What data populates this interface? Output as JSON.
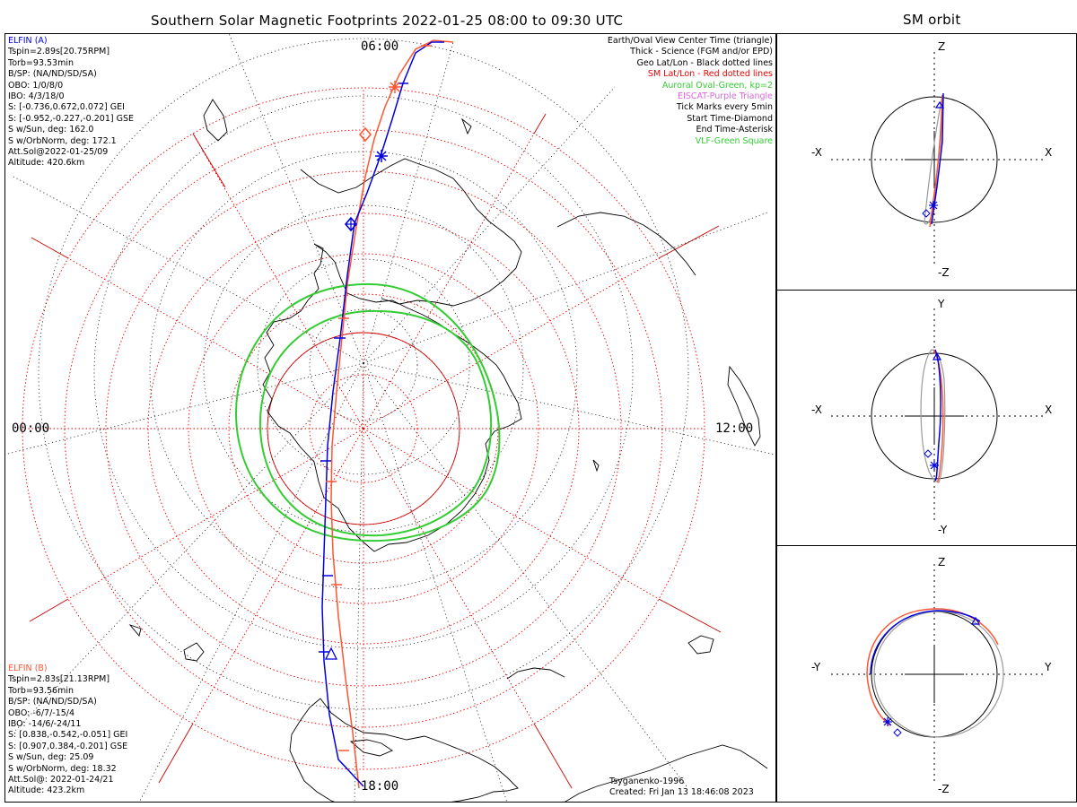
{
  "main_title": "Southern Solar Magnetic Footprints 2022-01-25 08:00 to 09:30 UTC",
  "side_title": "SM orbit",
  "mlt_labels": {
    "top": "06:00",
    "left": "00:00",
    "right": "12:00",
    "bottom": "18:00"
  },
  "elfin_a": {
    "name": "ELFIN (A)",
    "color": "#0000dd",
    "lines": [
      "Tspin=2.89s[20.75RPM]",
      "Torb=93.53min",
      "B/SP: (NA/ND/SD/SA)",
      "OBO: 1/0/8/0",
      "IBO: 4/3/18/0",
      "S: [-0.736,0.672,0.072] GEI",
      "S: [-0.952,-0.227,-0.201] GSE",
      "S w/Sun, deg: 162.0",
      "S w/OrbNorm, deg: 172.1",
      "Att.Sol@2022-01-25/09",
      "Altitude: 420.6km"
    ]
  },
  "elfin_b": {
    "name": "ELFIN (B)",
    "color": "#ff5533",
    "lines": [
      "Tspin=2.83s[21.13RPM]",
      "Torb=93.56min",
      "B/SP: (NA/ND/SD/SA)",
      "OBO: -6/7/-15/4",
      "IBO: -14/6/-24/11",
      "S: [0.838,-0.542,-0.051] GEI",
      "S: [0.907,0.384,-0.201] GSE",
      "S w/Sun, deg: 25.09",
      "S w/OrbNorm, deg: 18.32",
      "Att.Sol@: 2022-01-24/21",
      "Altitude: 423.2km"
    ]
  },
  "legend": [
    {
      "text": "Earth/Oval View Center Time (triangle)",
      "color": "#000000"
    },
    {
      "text": "Thick - Science (FGM and/or EPD)",
      "color": "#000000"
    },
    {
      "text": "Geo Lat/Lon - Black dotted lines",
      "color": "#000000"
    },
    {
      "text": "SM Lat/Lon - Red dotted lines",
      "color": "#ee0000"
    },
    {
      "text": "Auroral Oval-Green, kp=2",
      "color": "#33cc33"
    },
    {
      "text": "EISCAT-Purple Triangle",
      "color": "#dd66dd"
    },
    {
      "text": "Tick Marks every 5min",
      "color": "#000000"
    },
    {
      "text": "Start Time-Diamond",
      "color": "#000000"
    },
    {
      "text": "End Time-Asterisk",
      "color": "#000000"
    },
    {
      "text": "VLF-Green Square",
      "color": "#33cc33"
    }
  ],
  "credit": {
    "model": "Tsyganenko-1996",
    "created": "Created: Fri Jan 13 18:46:08 2023"
  },
  "orbit_panels": [
    {
      "up": "Z",
      "down": "-Z",
      "left": "-X",
      "right": "X"
    },
    {
      "up": "Y",
      "down": "-Y",
      "left": "-X",
      "right": "X"
    },
    {
      "up": "Z",
      "down": "-Z",
      "left": "-Y",
      "right": "Y"
    }
  ],
  "colors": {
    "sm_grid": "#ee0000",
    "geo_grid": "#000000",
    "oval": "#33cc33",
    "track_a": "#0000dd",
    "track_b": "#ff5533",
    "orbit_gray": "#999999"
  }
}
